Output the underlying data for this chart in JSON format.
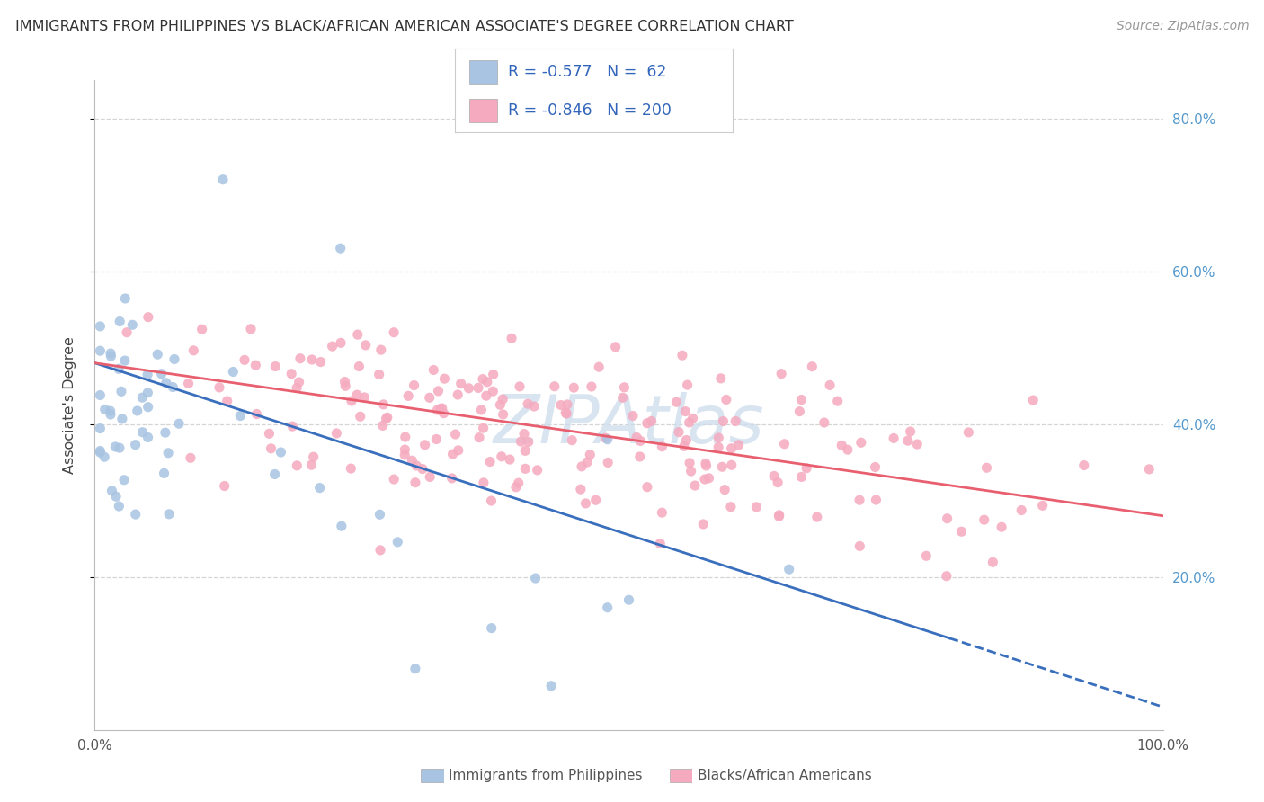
{
  "title": "IMMIGRANTS FROM PHILIPPINES VS BLACK/AFRICAN AMERICAN ASSOCIATE'S DEGREE CORRELATION CHART",
  "source": "Source: ZipAtlas.com",
  "ylabel": "Associate's Degree",
  "legend_blue_r": -0.577,
  "legend_blue_n": 62,
  "legend_pink_r": -0.846,
  "legend_pink_n": 200,
  "blue_scatter_color": "#a8c4e2",
  "pink_scatter_color": "#f5aabf",
  "blue_line_color": "#3a6fbd",
  "pink_line_color": "#e86070",
  "watermark": "ZIPAtlas",
  "watermark_color": "#ccdcec",
  "xmin": 0.0,
  "xmax": 1.0,
  "ymin": 0.0,
  "ymax": 0.85,
  "xtick_labels": [
    "0.0%",
    "100.0%"
  ],
  "xtick_positions": [
    0.0,
    1.0
  ],
  "ytick_labels": [
    "20.0%",
    "40.0%",
    "60.0%",
    "80.0%"
  ],
  "ytick_positions": [
    0.2,
    0.4,
    0.6,
    0.8
  ],
  "grid_color": "#d5d5d5",
  "axis_color": "#bbbbbb",
  "title_color": "#333333",
  "source_color": "#999999",
  "tick_label_color_right": "#5599cc",
  "tick_label_color_bottom": "#555555",
  "legend_text_color": "#3366bb",
  "bottom_legend_color": "#555555",
  "blue_line_start_y": 0.48,
  "blue_line_end_x": 0.8,
  "blue_line_end_y": 0.12,
  "pink_line_start_y": 0.48,
  "pink_line_end_y": 0.28
}
